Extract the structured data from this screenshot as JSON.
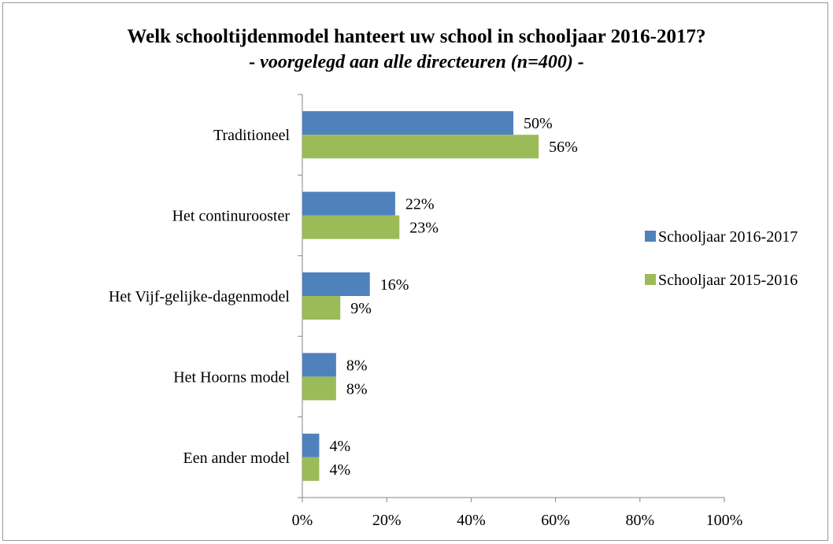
{
  "chart_data": {
    "type": "bar",
    "orientation": "horizontal",
    "title": "Welk schooltijdenmodel hanteert uw school in schooljaar 2016-2017?",
    "subtitle": "- voorgelegd aan alle directeuren (n=400) -",
    "categories": [
      "Traditioneel",
      "Het continurooster",
      "Het Vijf-gelijke-dagenmodel",
      "Het Hoorns model",
      "Een ander model"
    ],
    "series": [
      {
        "name": "Schooljaar 2016-2017",
        "color": "#4f81bd",
        "values": [
          50,
          22,
          16,
          8,
          4
        ],
        "labels": [
          "50%",
          "22%",
          "16%",
          "8%",
          "4%"
        ]
      },
      {
        "name": "Schooljaar 2015-2016",
        "color": "#9bbb59",
        "values": [
          56,
          23,
          9,
          8,
          4
        ],
        "labels": [
          "56%",
          "23%",
          "9%",
          "8%",
          "4%"
        ]
      }
    ],
    "xlim": [
      0,
      100
    ],
    "xticks": [
      "0%",
      "20%",
      "40%",
      "60%",
      "80%",
      "100%"
    ],
    "grid": false,
    "legend_position": "right"
  }
}
